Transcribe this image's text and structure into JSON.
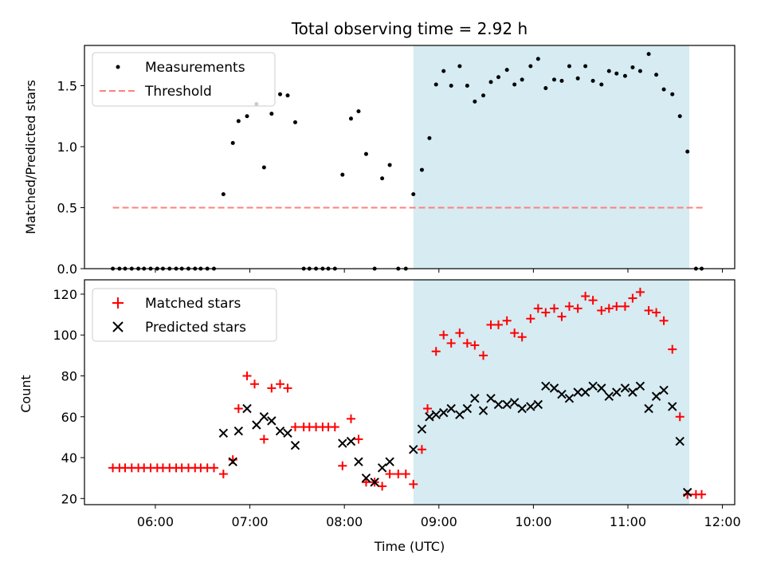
{
  "figure": {
    "title": "Total observing time = 2.92 h"
  },
  "chart_data": [
    {
      "type": "scatter",
      "panel": "top",
      "ylabel": "Matched/Predicted stars",
      "ylim": [
        0,
        1.83
      ],
      "xlim": [
        5.25,
        12.13
      ],
      "yticks": [
        0.0,
        0.5,
        1.0,
        1.5
      ],
      "ytick_labels": [
        "0.0",
        "0.5",
        "1.0",
        "1.5"
      ],
      "grid": false,
      "legend_location": "upper-left",
      "shaded_span": {
        "x": [
          8.73,
          11.65
        ],
        "color": "#add8e6"
      },
      "series": [
        {
          "name": "Measurements",
          "marker": "dot",
          "color": "#000000",
          "x": [
            5.55,
            5.62,
            5.68,
            5.75,
            5.82,
            5.88,
            5.95,
            6.02,
            6.08,
            6.15,
            6.22,
            6.28,
            6.35,
            6.42,
            6.48,
            6.55,
            6.62,
            6.72,
            6.82,
            6.88,
            6.97,
            7.07,
            7.15,
            7.23,
            7.32,
            7.4,
            7.48,
            7.57,
            7.63,
            7.7,
            7.77,
            7.83,
            7.9,
            7.98,
            8.07,
            8.15,
            8.23,
            8.32,
            8.4,
            8.48,
            8.57,
            8.65,
            8.73,
            8.82,
            8.9,
            8.97,
            9.05,
            9.13,
            9.22,
            9.3,
            9.38,
            9.47,
            9.55,
            9.63,
            9.72,
            9.8,
            9.88,
            9.97,
            10.05,
            10.13,
            10.22,
            10.3,
            10.38,
            10.47,
            10.55,
            10.63,
            10.72,
            10.8,
            10.88,
            10.97,
            11.05,
            11.13,
            11.22,
            11.3,
            11.38,
            11.47,
            11.55,
            11.63,
            11.72,
            11.78
          ],
          "y": [
            0.0,
            0.0,
            0.0,
            0.0,
            0.0,
            0.0,
            0.0,
            0.0,
            0.0,
            0.0,
            0.0,
            0.0,
            0.0,
            0.0,
            0.0,
            0.0,
            0.0,
            0.61,
            1.03,
            1.21,
            1.25,
            1.35,
            0.83,
            1.27,
            1.43,
            1.42,
            1.2,
            0.0,
            0.0,
            0.0,
            0.0,
            0.0,
            0.0,
            0.77,
            1.23,
            1.29,
            0.94,
            0.0,
            0.74,
            0.85,
            0.0,
            0.0,
            0.61,
            0.81,
            1.07,
            1.51,
            1.62,
            1.5,
            1.66,
            1.5,
            1.37,
            1.42,
            1.53,
            1.57,
            1.63,
            1.51,
            1.55,
            1.66,
            1.72,
            1.48,
            1.55,
            1.54,
            1.66,
            1.56,
            1.66,
            1.54,
            1.51,
            1.62,
            1.6,
            1.58,
            1.65,
            1.62,
            1.76,
            1.59,
            1.47,
            1.43,
            1.25,
            0.96,
            0.0,
            0.0
          ]
        },
        {
          "name": "Threshold",
          "marker": "dashed-line",
          "color": "#ff7f7f",
          "x": [
            5.55,
            11.82
          ],
          "y": [
            0.5,
            0.5
          ]
        }
      ]
    },
    {
      "type": "scatter",
      "panel": "bottom",
      "ylabel": "Count",
      "xlabel": "Time (UTC)",
      "ylim": [
        17,
        127
      ],
      "xlim": [
        5.25,
        12.13
      ],
      "yticks": [
        20,
        40,
        60,
        80,
        100,
        120
      ],
      "ytick_labels": [
        "20",
        "40",
        "60",
        "80",
        "100",
        "120"
      ],
      "xticks": [
        6,
        7,
        8,
        9,
        10,
        11,
        12
      ],
      "xtick_labels": [
        "06:00",
        "07:00",
        "08:00",
        "09:00",
        "10:00",
        "11:00",
        "12:00"
      ],
      "grid": false,
      "legend_location": "upper-left",
      "shaded_span": {
        "x": [
          8.73,
          11.65
        ],
        "color": "#add8e6"
      },
      "series": [
        {
          "name": "Matched stars",
          "marker": "plus",
          "color": "#ff0000",
          "x": [
            5.55,
            5.62,
            5.68,
            5.75,
            5.82,
            5.88,
            5.95,
            6.02,
            6.08,
            6.15,
            6.22,
            6.28,
            6.35,
            6.42,
            6.48,
            6.55,
            6.62,
            6.72,
            6.82,
            6.88,
            6.97,
            7.05,
            7.15,
            7.23,
            7.32,
            7.4,
            7.48,
            7.57,
            7.63,
            7.7,
            7.77,
            7.83,
            7.9,
            7.98,
            8.07,
            8.15,
            8.23,
            8.32,
            8.4,
            8.48,
            8.57,
            8.65,
            8.73,
            8.82,
            8.88,
            8.97,
            9.05,
            9.13,
            9.22,
            9.3,
            9.38,
            9.47,
            9.55,
            9.63,
            9.72,
            9.8,
            9.88,
            9.97,
            10.05,
            10.13,
            10.22,
            10.3,
            10.38,
            10.47,
            10.55,
            10.63,
            10.72,
            10.8,
            10.88,
            10.97,
            11.05,
            11.13,
            11.22,
            11.3,
            11.38,
            11.47,
            11.55,
            11.63,
            11.72,
            11.78
          ],
          "y": [
            35,
            35,
            35,
            35,
            35,
            35,
            35,
            35,
            35,
            35,
            35,
            35,
            35,
            35,
            35,
            35,
            35,
            32,
            39,
            64,
            80,
            76,
            49,
            74,
            76,
            74,
            55,
            55,
            55,
            55,
            55,
            55,
            55,
            36,
            59,
            49,
            28,
            28,
            26,
            32,
            32,
            32,
            27,
            44,
            64,
            92,
            100,
            96,
            101,
            96,
            95,
            90,
            105,
            105,
            107,
            101,
            99,
            108,
            113,
            111,
            113,
            109,
            114,
            113,
            119,
            117,
            112,
            113,
            114,
            114,
            118,
            121,
            112,
            111,
            107,
            93,
            60,
            22,
            22,
            22
          ]
        },
        {
          "name": "Predicted stars",
          "marker": "x",
          "color": "#000000",
          "x": [
            6.72,
            6.82,
            6.88,
            6.97,
            7.07,
            7.15,
            7.23,
            7.32,
            7.4,
            7.48,
            7.98,
            8.07,
            8.15,
            8.23,
            8.32,
            8.4,
            8.48,
            8.73,
            8.82,
            8.9,
            8.97,
            9.05,
            9.13,
            9.22,
            9.3,
            9.38,
            9.47,
            9.55,
            9.63,
            9.72,
            9.8,
            9.88,
            9.97,
            10.05,
            10.13,
            10.22,
            10.3,
            10.38,
            10.47,
            10.55,
            10.63,
            10.72,
            10.8,
            10.88,
            10.97,
            11.05,
            11.13,
            11.22,
            11.3,
            11.38,
            11.47,
            11.55,
            11.63
          ],
          "y": [
            52,
            38,
            53,
            64,
            56,
            60,
            58,
            53,
            52,
            46,
            47,
            48,
            38,
            30,
            28,
            35,
            38,
            44,
            54,
            60,
            61,
            62,
            64,
            61,
            64,
            69,
            63,
            69,
            66,
            66,
            67,
            64,
            65,
            66,
            75,
            74,
            71,
            69,
            72,
            72,
            75,
            74,
            70,
            72,
            74,
            72,
            75,
            64,
            70,
            73,
            65,
            48,
            23
          ]
        }
      ]
    }
  ]
}
